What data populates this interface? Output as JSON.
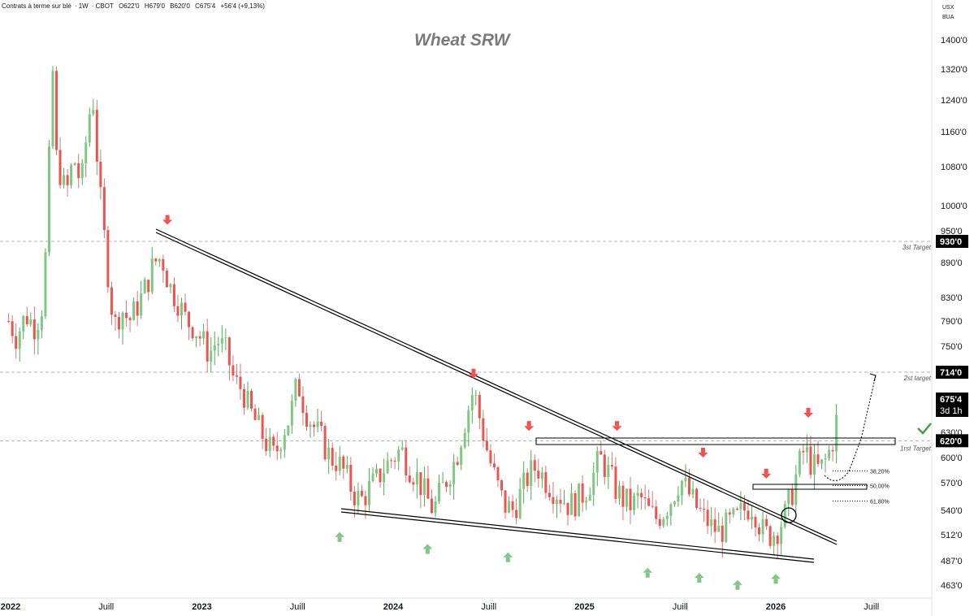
{
  "header": {
    "instrument": "Contrats à terme sur blé",
    "interval": "1W",
    "exchange": "CBOT",
    "open": "O622'0",
    "high": "H679'0",
    "low": "B620'0",
    "close": "C675'4",
    "change": "+56'4 (+9,13%)"
  },
  "currency": {
    "code": "USX",
    "unit": "BUA"
  },
  "chart_data": {
    "type": "candlestick",
    "title": "Wheat SRW",
    "y_ticks": [
      463,
      487,
      512,
      540,
      570,
      600,
      630,
      675.5,
      714,
      750,
      790,
      830,
      890,
      930,
      950,
      1000,
      1080,
      1160,
      1240,
      1320,
      1400
    ],
    "y_tick_labels": [
      "463'0",
      "487'0",
      "512'0",
      "540'0",
      "570'0",
      "600'0",
      "630'0",
      "675'4",
      "714'0",
      "750'0",
      "790'0",
      "830'0",
      "890'0",
      "930'0",
      "950'0",
      "1000'0",
      "1080'0",
      "1160'0",
      "1240'0",
      "1320'0",
      "1400'0"
    ],
    "x_labels": [
      {
        "t": 2022.0,
        "label": "2022",
        "bold": true
      },
      {
        "t": 2022.5,
        "label": "Juill",
        "bold": false
      },
      {
        "t": 2023.0,
        "label": "2023",
        "bold": true
      },
      {
        "t": 2023.5,
        "label": "Juill",
        "bold": false
      },
      {
        "t": 2024.0,
        "label": "2024",
        "bold": true
      },
      {
        "t": 2024.5,
        "label": "Juill",
        "bold": false
      },
      {
        "t": 2025.0,
        "label": "2025",
        "bold": true
      },
      {
        "t": 2025.5,
        "label": "Juill",
        "bold": false
      },
      {
        "t": 2026.0,
        "label": "2026",
        "bold": true
      },
      {
        "t": 2026.5,
        "label": "Juill",
        "bold": false
      }
    ],
    "close_path": [
      [
        2021.99,
        790
      ],
      [
        2022.03,
        765
      ],
      [
        2022.08,
        800
      ],
      [
        2022.13,
        780
      ],
      [
        2022.17,
        820
      ],
      [
        2022.19,
        950
      ],
      [
        2022.21,
        1200
      ],
      [
        2022.22,
        1320
      ],
      [
        2022.24,
        1100
      ],
      [
        2022.29,
        1020
      ],
      [
        2022.33,
        1100
      ],
      [
        2022.37,
        1040
      ],
      [
        2022.41,
        1200
      ],
      [
        2022.43,
        1250
      ],
      [
        2022.46,
        1050
      ],
      [
        2022.5,
        900
      ],
      [
        2022.54,
        780
      ],
      [
        2022.58,
        810
      ],
      [
        2022.62,
        790
      ],
      [
        2022.67,
        820
      ],
      [
        2022.71,
        850
      ],
      [
        2022.75,
        890
      ],
      [
        2022.79,
        900
      ],
      [
        2022.83,
        850
      ],
      [
        2022.88,
        820
      ],
      [
        2022.92,
        790
      ],
      [
        2022.96,
        780
      ],
      [
        2023.0,
        760
      ],
      [
        2023.04,
        740
      ],
      [
        2023.08,
        760
      ],
      [
        2023.13,
        740
      ],
      [
        2023.17,
        700
      ],
      [
        2023.21,
        690
      ],
      [
        2023.25,
        660
      ],
      [
        2023.29,
        640
      ],
      [
        2023.33,
        620
      ],
      [
        2023.38,
        600
      ],
      [
        2023.42,
        630
      ],
      [
        2023.46,
        650
      ],
      [
        2023.5,
        700
      ],
      [
        2023.54,
        660
      ],
      [
        2023.58,
        640
      ],
      [
        2023.63,
        620
      ],
      [
        2023.67,
        600
      ],
      [
        2023.71,
        595
      ],
      [
        2023.75,
        580
      ],
      [
        2023.79,
        560
      ],
      [
        2023.83,
        550
      ],
      [
        2023.88,
        565
      ],
      [
        2023.92,
        575
      ],
      [
        2023.96,
        590
      ],
      [
        2024.0,
        600
      ],
      [
        2024.04,
        610
      ],
      [
        2024.08,
        590
      ],
      [
        2024.13,
        575
      ],
      [
        2024.17,
        555
      ],
      [
        2024.21,
        540
      ],
      [
        2024.25,
        560
      ],
      [
        2024.29,
        580
      ],
      [
        2024.33,
        600
      ],
      [
        2024.38,
        650
      ],
      [
        2024.42,
        690
      ],
      [
        2024.46,
        640
      ],
      [
        2024.5,
        600
      ],
      [
        2024.54,
        570
      ],
      [
        2024.58,
        545
      ],
      [
        2024.63,
        540
      ],
      [
        2024.67,
        560
      ],
      [
        2024.71,
        580
      ],
      [
        2024.75,
        590
      ],
      [
        2024.79,
        575
      ],
      [
        2024.83,
        565
      ],
      [
        2024.88,
        555
      ],
      [
        2024.92,
        545
      ],
      [
        2024.96,
        550
      ],
      [
        2025.0,
        560
      ],
      [
        2025.04,
        575
      ],
      [
        2025.08,
        600
      ],
      [
        2025.13,
        580
      ],
      [
        2025.17,
        560
      ],
      [
        2025.21,
        550
      ],
      [
        2025.25,
        545
      ],
      [
        2025.29,
        555
      ],
      [
        2025.33,
        540
      ],
      [
        2025.38,
        530
      ],
      [
        2025.42,
        540
      ],
      [
        2025.46,
        555
      ],
      [
        2025.5,
        575
      ],
      [
        2025.54,
        560
      ],
      [
        2025.58,
        545
      ],
      [
        2025.63,
        530
      ],
      [
        2025.67,
        520
      ],
      [
        2025.71,
        515
      ],
      [
        2025.75,
        525
      ],
      [
        2025.79,
        530
      ],
      [
        2025.83,
        540
      ],
      [
        2025.88,
        545
      ],
      [
        2025.92,
        520
      ],
      [
        2025.96,
        512
      ],
      [
        2026.0,
        515
      ],
      [
        2026.04,
        530
      ],
      [
        2026.08,
        555
      ],
      [
        2026.12,
        590
      ],
      [
        2026.15,
        610
      ],
      [
        2026.19,
        590
      ],
      [
        2026.23,
        585
      ],
      [
        2026.27,
        600
      ],
      [
        2026.31,
        630
      ],
      [
        2026.33,
        675.5
      ]
    ],
    "annotations": {
      "levels": [
        {
          "price": 930,
          "label": "3st Target"
        },
        {
          "price": 714,
          "label": "2st target"
        },
        {
          "price": 620,
          "label": "1rst Target"
        }
      ],
      "fib_levels": [
        {
          "price": 584,
          "label": "38,20%"
        },
        {
          "price": 567,
          "label": "50,00%"
        },
        {
          "price": 550,
          "label": "61,80%"
        }
      ],
      "red_arrows": [
        {
          "t": 2022.82,
          "price": 962
        },
        {
          "t": 2024.42,
          "price": 705
        },
        {
          "t": 2024.71,
          "price": 632
        },
        {
          "t": 2025.17,
          "price": 632
        },
        {
          "t": 2025.62,
          "price": 600
        },
        {
          "t": 2025.95,
          "price": 575
        },
        {
          "t": 2026.17,
          "price": 650
        }
      ],
      "green_arrows": [
        {
          "t": 2023.72,
          "price": 515
        },
        {
          "t": 2024.18,
          "price": 503
        },
        {
          "t": 2024.6,
          "price": 495
        },
        {
          "t": 2025.33,
          "price": 480
        },
        {
          "t": 2025.6,
          "price": 475
        },
        {
          "t": 2025.8,
          "price": 468
        },
        {
          "t": 2026.0,
          "price": 474
        }
      ]
    },
    "last_price": {
      "value": "675'4",
      "countdown": "3d 1h"
    },
    "tags": [
      {
        "price": 930,
        "label": "930'0"
      },
      {
        "price": 714,
        "label": "714'0"
      },
      {
        "price": 620,
        "label": "620'0"
      }
    ],
    "colors": {
      "up": "#81c784",
      "down": "#ef5350",
      "wick_up": "#4caf50",
      "wick_down": "#e57373",
      "check": "#43a047"
    }
  }
}
